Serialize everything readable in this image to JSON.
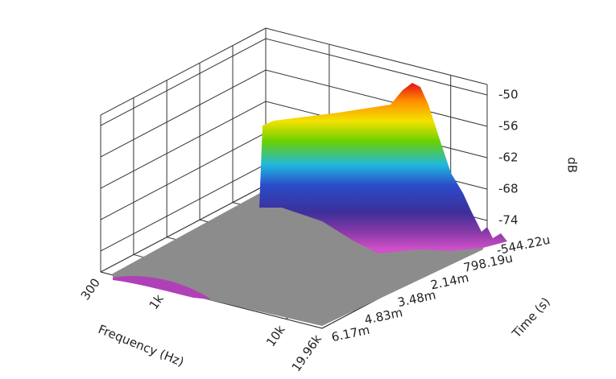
{
  "chart_data": {
    "type": "surface",
    "x_label": "Frequency (Hz)",
    "y_label": "Time (s)",
    "z_label": "dB",
    "xscale": "log",
    "xlim": [
      300,
      19960
    ],
    "xticks": [
      300,
      {
        "value": 1000,
        "label": "1k"
      },
      {
        "value": 10000,
        "label": "10k"
      },
      {
        "value": 19960,
        "label": "19.96k"
      }
    ],
    "ylim": [
      -0.00054422,
      0.00617
    ],
    "yticks": [
      {
        "value": -0.00054422,
        "label": "-544.22u"
      },
      {
        "value": 0.00079819,
        "label": "798.19u"
      },
      {
        "value": 0.00214,
        "label": "2.14m"
      },
      {
        "value": 0.00348,
        "label": "3.48m"
      },
      {
        "value": 0.00483,
        "label": "4.83m"
      },
      {
        "value": 0.00617,
        "label": "6.17m"
      }
    ],
    "zlim": [
      -78,
      -48
    ],
    "zticks": [
      -50,
      -56,
      -62,
      -68,
      -74
    ]
  }
}
